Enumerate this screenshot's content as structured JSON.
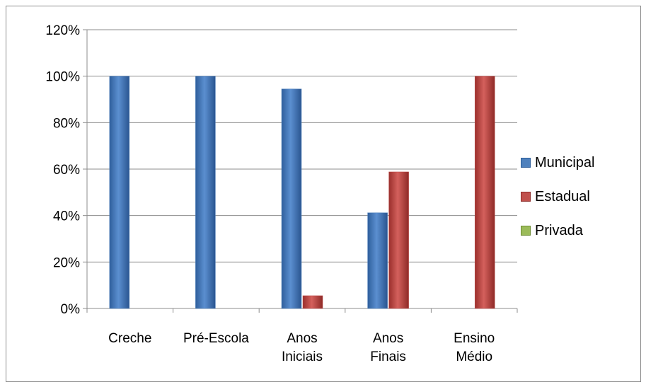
{
  "chart_data": {
    "type": "bar",
    "title": "",
    "xlabel": "",
    "ylabel": "",
    "ylim": [
      0,
      120
    ],
    "y_tick_labels": [
      "0%",
      "20%",
      "40%",
      "60%",
      "80%",
      "100%",
      "120%"
    ],
    "y_ticks": [
      0,
      20,
      40,
      60,
      80,
      100,
      120
    ],
    "categories": [
      [
        "Creche"
      ],
      [
        "Pré-Escola"
      ],
      [
        "Anos",
        "Iniciais"
      ],
      [
        "Anos",
        "Finais"
      ],
      [
        "Ensino",
        "Médio"
      ]
    ],
    "series": [
      {
        "name": "Municipal",
        "values": [
          100,
          100,
          94.5,
          41.2,
          0
        ],
        "color": "#4f81bd"
      },
      {
        "name": "Estadual",
        "values": [
          0,
          0,
          5.5,
          58.8,
          100
        ],
        "color": "#c0504d"
      },
      {
        "name": "Privada",
        "values": [
          0,
          0,
          0,
          0,
          0
        ],
        "color": "#9bbb59"
      }
    ],
    "grid": true,
    "legend_position": "right"
  }
}
